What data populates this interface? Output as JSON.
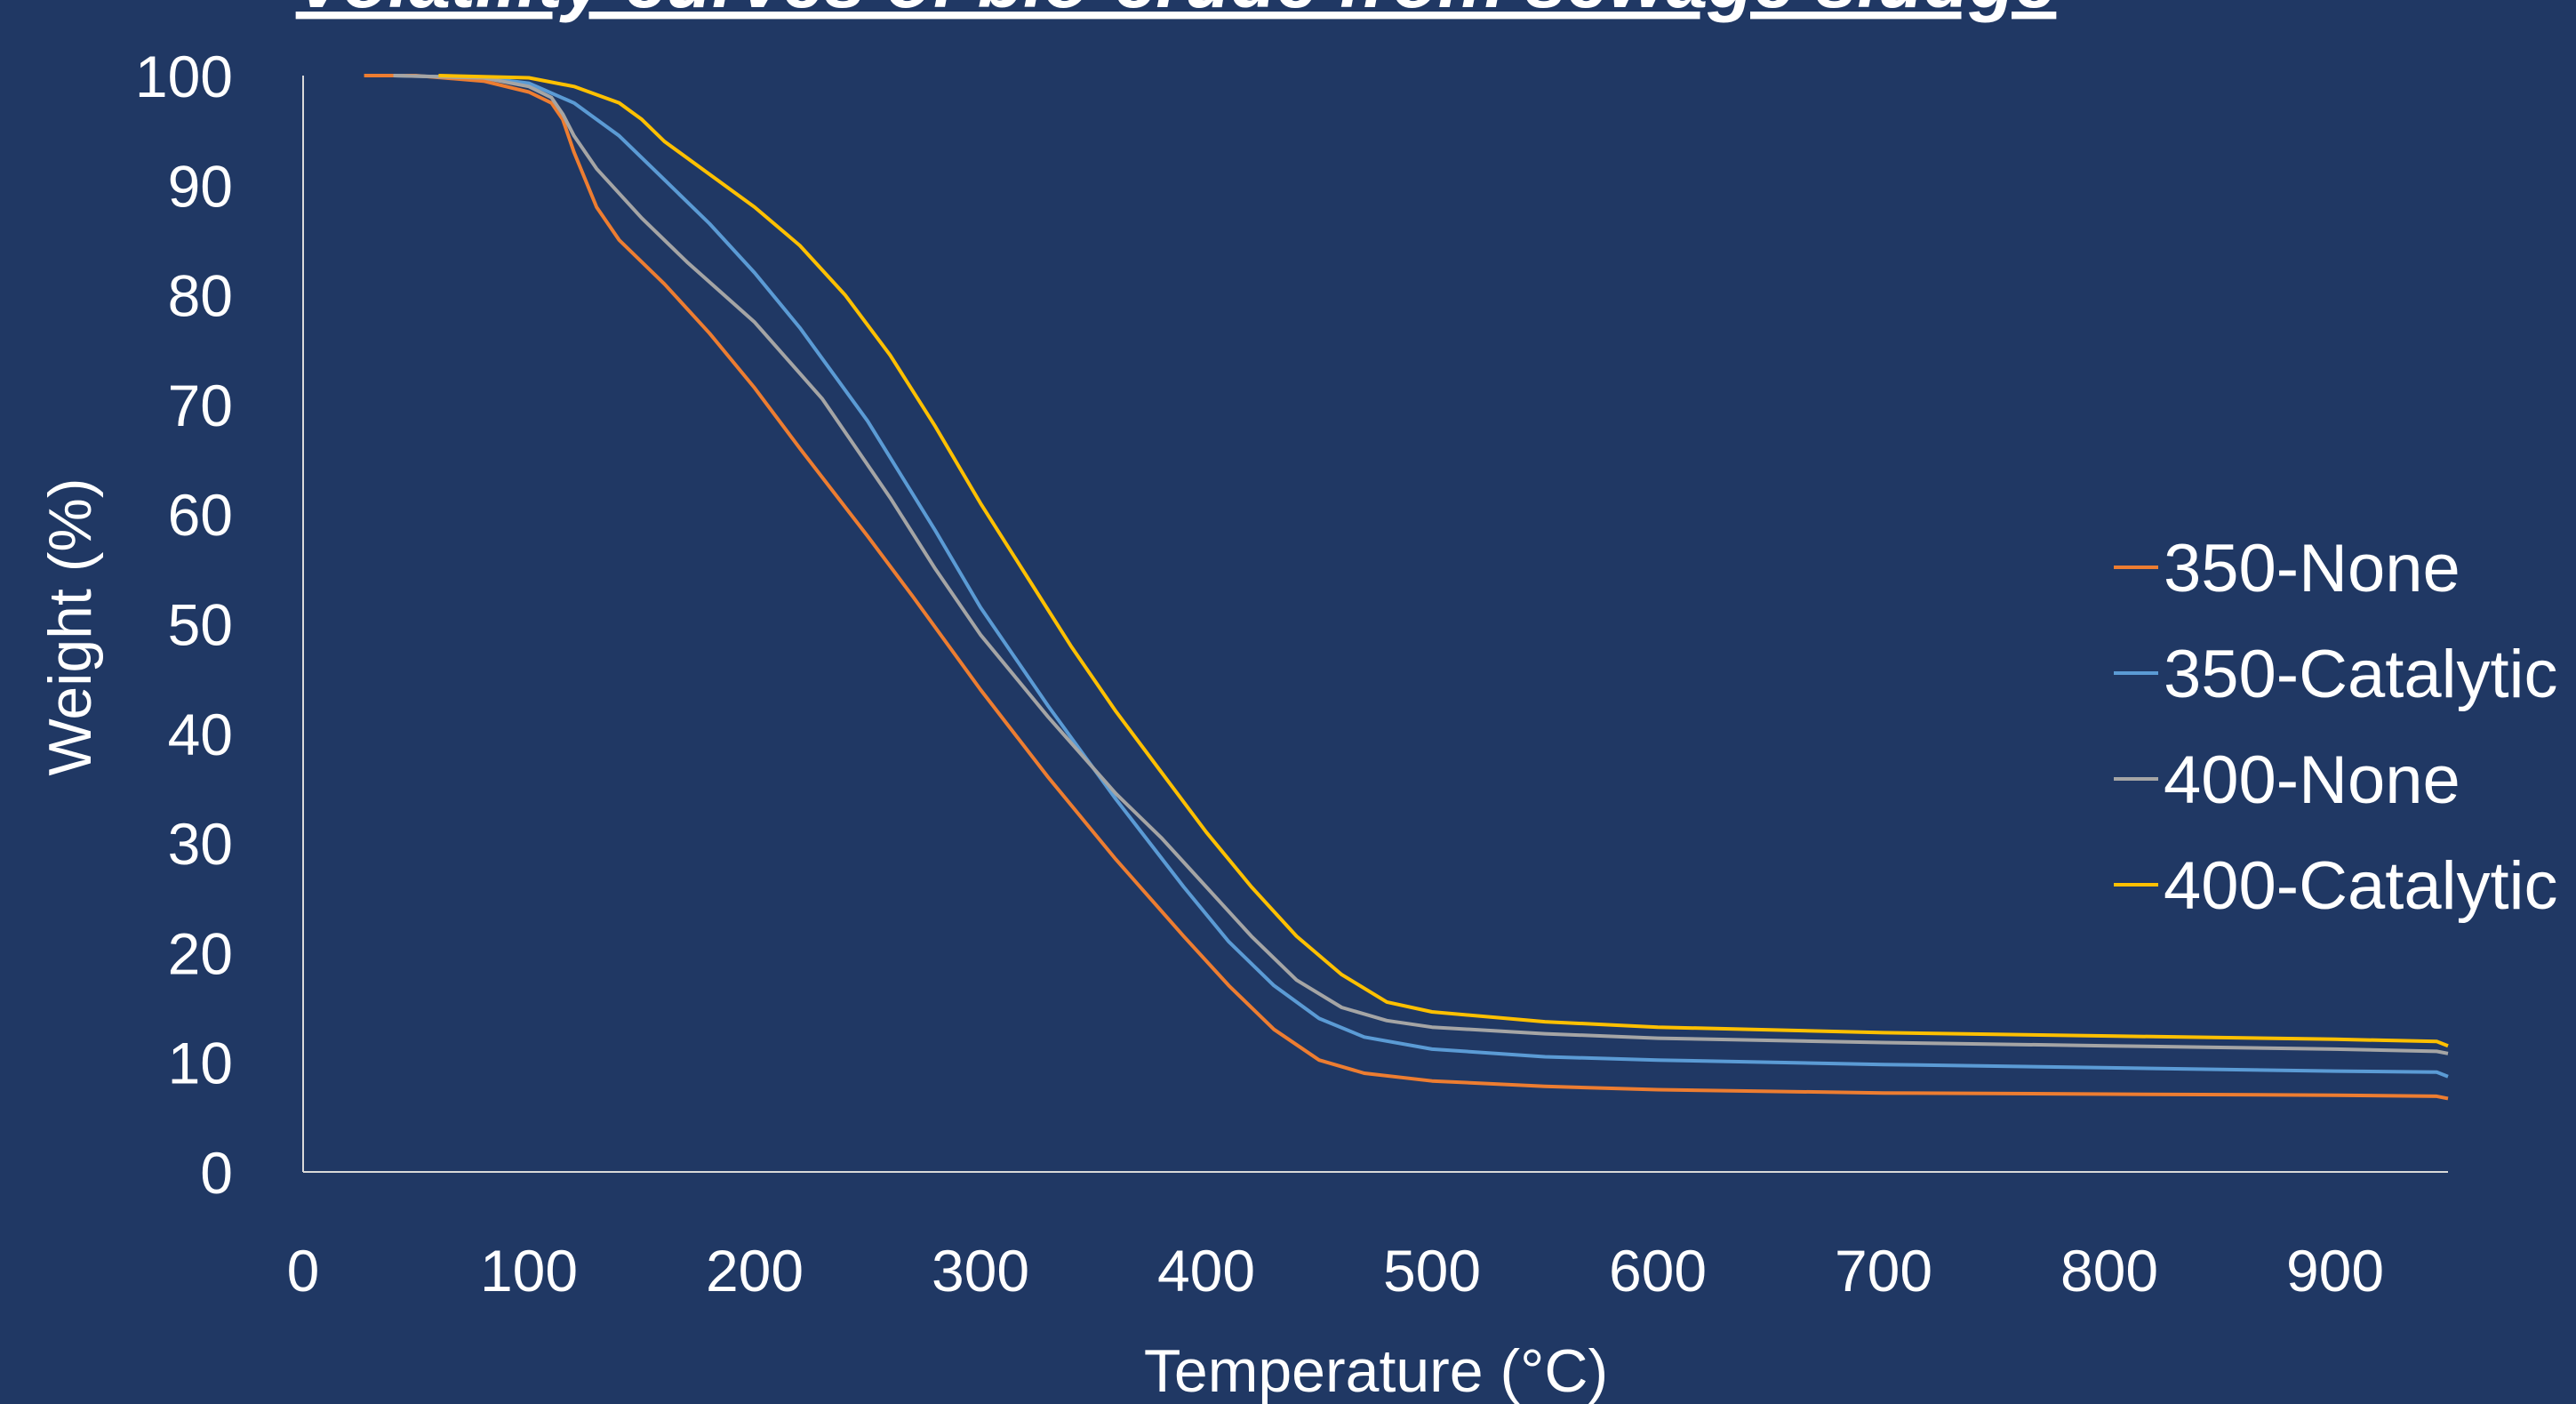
{
  "chart_data": {
    "type": "line",
    "title": "Volatility curves of bio-crude from sewage sludge",
    "xlabel": "Temperature (°C)",
    "ylabel": "Weight (%)",
    "xlim": [
      0,
      950
    ],
    "ylim": [
      0,
      100
    ],
    "xticks": [
      0,
      100,
      200,
      300,
      400,
      500,
      600,
      700,
      800,
      900
    ],
    "yticks": [
      0,
      10,
      20,
      30,
      40,
      50,
      60,
      70,
      80,
      90,
      100
    ],
    "grid": false,
    "legend_position": "right",
    "series": [
      {
        "name": "350-None",
        "color": "#ed7d31",
        "points": [
          [
            27,
            100
          ],
          [
            50,
            100
          ],
          [
            80,
            99.5
          ],
          [
            100,
            98.5
          ],
          [
            110,
            97.5
          ],
          [
            115,
            96
          ],
          [
            120,
            93
          ],
          [
            130,
            88
          ],
          [
            140,
            85
          ],
          [
            160,
            81
          ],
          [
            180,
            76.5
          ],
          [
            200,
            71.5
          ],
          [
            220,
            66
          ],
          [
            250,
            58
          ],
          [
            270,
            52.5
          ],
          [
            300,
            44
          ],
          [
            330,
            36
          ],
          [
            360,
            28.5
          ],
          [
            390,
            21.5
          ],
          [
            410,
            17
          ],
          [
            430,
            13
          ],
          [
            450,
            10.2
          ],
          [
            470,
            9
          ],
          [
            500,
            8.3
          ],
          [
            550,
            7.8
          ],
          [
            600,
            7.5
          ],
          [
            700,
            7.2
          ],
          [
            800,
            7.1
          ],
          [
            900,
            7
          ],
          [
            945,
            6.9
          ],
          [
            950,
            6.7
          ]
        ]
      },
      {
        "name": "350-Catalytic",
        "color": "#5b9bd5",
        "points": [
          [
            40,
            100
          ],
          [
            80,
            99.8
          ],
          [
            100,
            99.3
          ],
          [
            120,
            97.5
          ],
          [
            140,
            94.5
          ],
          [
            160,
            90.5
          ],
          [
            180,
            86.5
          ],
          [
            200,
            82
          ],
          [
            220,
            77
          ],
          [
            250,
            68.5
          ],
          [
            280,
            58.5
          ],
          [
            300,
            51.5
          ],
          [
            330,
            42.5
          ],
          [
            360,
            34
          ],
          [
            390,
            26
          ],
          [
            410,
            21
          ],
          [
            430,
            17
          ],
          [
            450,
            14
          ],
          [
            470,
            12.3
          ],
          [
            500,
            11.2
          ],
          [
            550,
            10.5
          ],
          [
            600,
            10.2
          ],
          [
            700,
            9.8
          ],
          [
            800,
            9.5
          ],
          [
            900,
            9.2
          ],
          [
            945,
            9.1
          ],
          [
            950,
            8.7
          ]
        ]
      },
      {
        "name": "400-None",
        "color": "#a5a5a5",
        "points": [
          [
            40,
            100
          ],
          [
            80,
            99.8
          ],
          [
            100,
            99
          ],
          [
            110,
            98
          ],
          [
            115,
            96.5
          ],
          [
            120,
            94.5
          ],
          [
            130,
            91.5
          ],
          [
            150,
            87
          ],
          [
            170,
            83
          ],
          [
            200,
            77.5
          ],
          [
            230,
            70.5
          ],
          [
            260,
            61.5
          ],
          [
            280,
            55
          ],
          [
            300,
            49
          ],
          [
            330,
            41.5
          ],
          [
            360,
            34.5
          ],
          [
            380,
            30.5
          ],
          [
            400,
            26
          ],
          [
            420,
            21.5
          ],
          [
            440,
            17.5
          ],
          [
            460,
            15
          ],
          [
            480,
            13.8
          ],
          [
            500,
            13.2
          ],
          [
            550,
            12.6
          ],
          [
            600,
            12.2
          ],
          [
            700,
            11.8
          ],
          [
            800,
            11.5
          ],
          [
            900,
            11.2
          ],
          [
            945,
            11
          ],
          [
            950,
            10.8
          ]
        ]
      },
      {
        "name": "400-Catalytic",
        "color": "#ffc000",
        "points": [
          [
            60,
            100
          ],
          [
            100,
            99.8
          ],
          [
            120,
            99
          ],
          [
            140,
            97.5
          ],
          [
            150,
            96
          ],
          [
            160,
            94
          ],
          [
            180,
            91
          ],
          [
            200,
            88
          ],
          [
            220,
            84.5
          ],
          [
            240,
            80
          ],
          [
            260,
            74.5
          ],
          [
            280,
            68
          ],
          [
            300,
            61
          ],
          [
            320,
            54.5
          ],
          [
            340,
            48
          ],
          [
            360,
            42
          ],
          [
            380,
            36.5
          ],
          [
            400,
            31
          ],
          [
            420,
            26
          ],
          [
            440,
            21.5
          ],
          [
            460,
            18
          ],
          [
            480,
            15.5
          ],
          [
            500,
            14.6
          ],
          [
            550,
            13.7
          ],
          [
            600,
            13.2
          ],
          [
            700,
            12.7
          ],
          [
            800,
            12.4
          ],
          [
            900,
            12.1
          ],
          [
            945,
            11.9
          ],
          [
            950,
            11.5
          ]
        ]
      }
    ]
  }
}
